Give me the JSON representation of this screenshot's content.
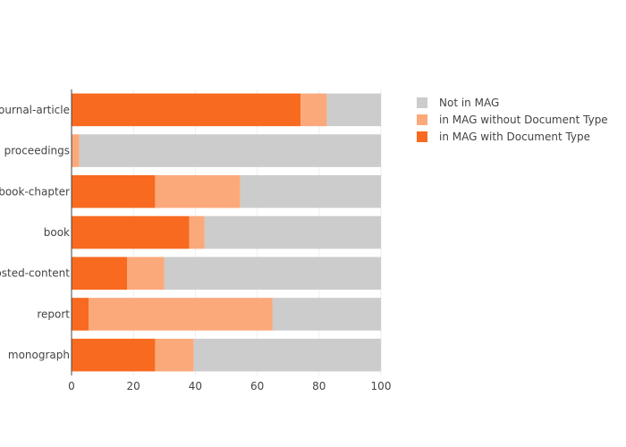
{
  "chart_data": {
    "type": "bar",
    "orientation": "horizontal",
    "stacked": true,
    "categories": [
      "journal-article",
      "proceedings",
      "book-chapter",
      "book",
      "posted-content",
      "report",
      "monograph"
    ],
    "series": [
      {
        "name": "in MAG with Document Type",
        "color": "#f76a1f",
        "values": [
          74,
          0,
          27,
          38,
          18,
          5.5,
          27
        ]
      },
      {
        "name": "in MAG without Document Type",
        "color": "#fba97b",
        "values": [
          8.5,
          2.5,
          27.5,
          5,
          12,
          59.5,
          12.5
        ]
      },
      {
        "name": "Not in MAG",
        "color": "#cccccc",
        "values": [
          17.5,
          97.5,
          45.5,
          57,
          70,
          35,
          60.5
        ]
      }
    ],
    "legend_order": [
      "Not in MAG",
      "in MAG without Document Type",
      "in MAG with Document Type"
    ],
    "xlim": [
      0,
      100
    ],
    "xticks": [
      0,
      20,
      40,
      60,
      80,
      100
    ],
    "grid": true,
    "legend_position": "top-right",
    "title": "",
    "xlabel": "",
    "ylabel": ""
  }
}
